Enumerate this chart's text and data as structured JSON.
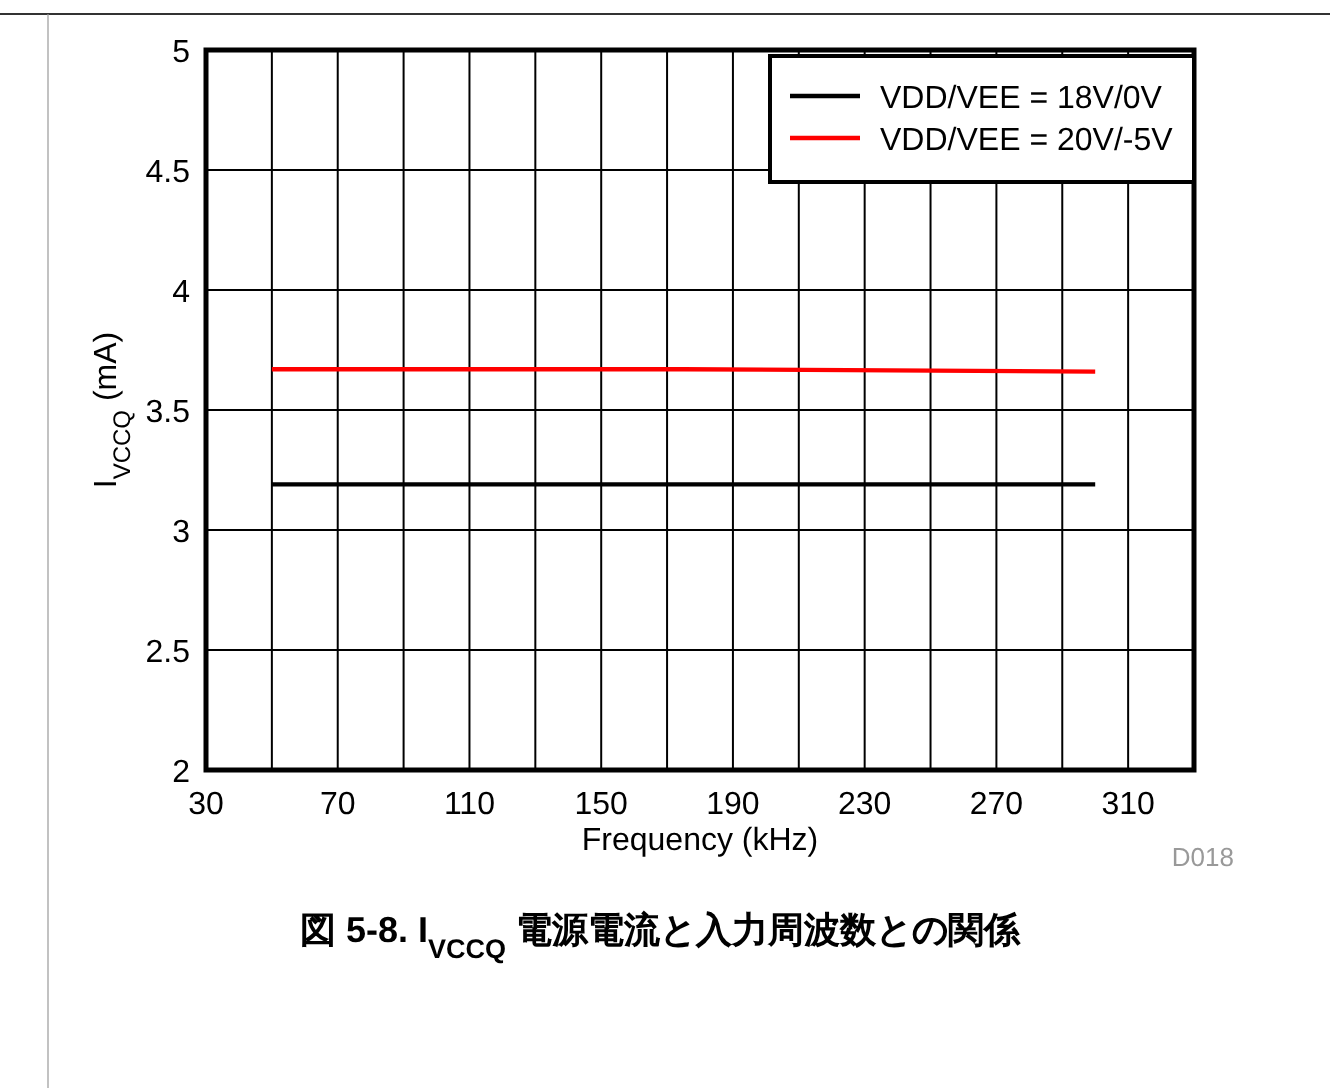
{
  "chart_data": {
    "type": "line",
    "title": "図 5-8. I$_{VCCQ}$ 電源電流と入力周波数との関係",
    "xlabel": "Frequency (kHz)",
    "ylabel": "I$_{VCCQ}$ (mA)",
    "annotations": [
      "D018"
    ],
    "xlim": [
      30,
      330
    ],
    "ylim": [
      2,
      5
    ],
    "xticks": [
      30,
      {
        "value": 50,
        "label": null
      },
      70,
      {
        "value": 90,
        "label": null
      },
      110,
      {
        "value": 130,
        "label": null
      },
      150,
      {
        "value": 170,
        "label": null
      },
      190,
      {
        "value": 210,
        "label": null
      },
      230,
      {
        "value": 250,
        "label": null
      },
      270,
      {
        "value": 290,
        "label": null
      },
      310
    ],
    "yticks": [
      2,
      2.5,
      3,
      3.5,
      4,
      4.5,
      5
    ],
    "grid": true,
    "legend": "top right",
    "marker": "none",
    "line_style": "solid",
    "series": [
      {
        "name": "VDD/VEE = 18V/0V",
        "color": "#000000",
        "x": [
          50,
          175,
          300
        ],
        "values": [
          3.19,
          3.19,
          3.19
        ]
      },
      {
        "name": "VDD/VEE = 20V/-5V",
        "color": "#ff0000",
        "x": [
          50,
          175,
          300
        ],
        "values": [
          3.67,
          3.67,
          3.66
        ]
      }
    ]
  }
}
